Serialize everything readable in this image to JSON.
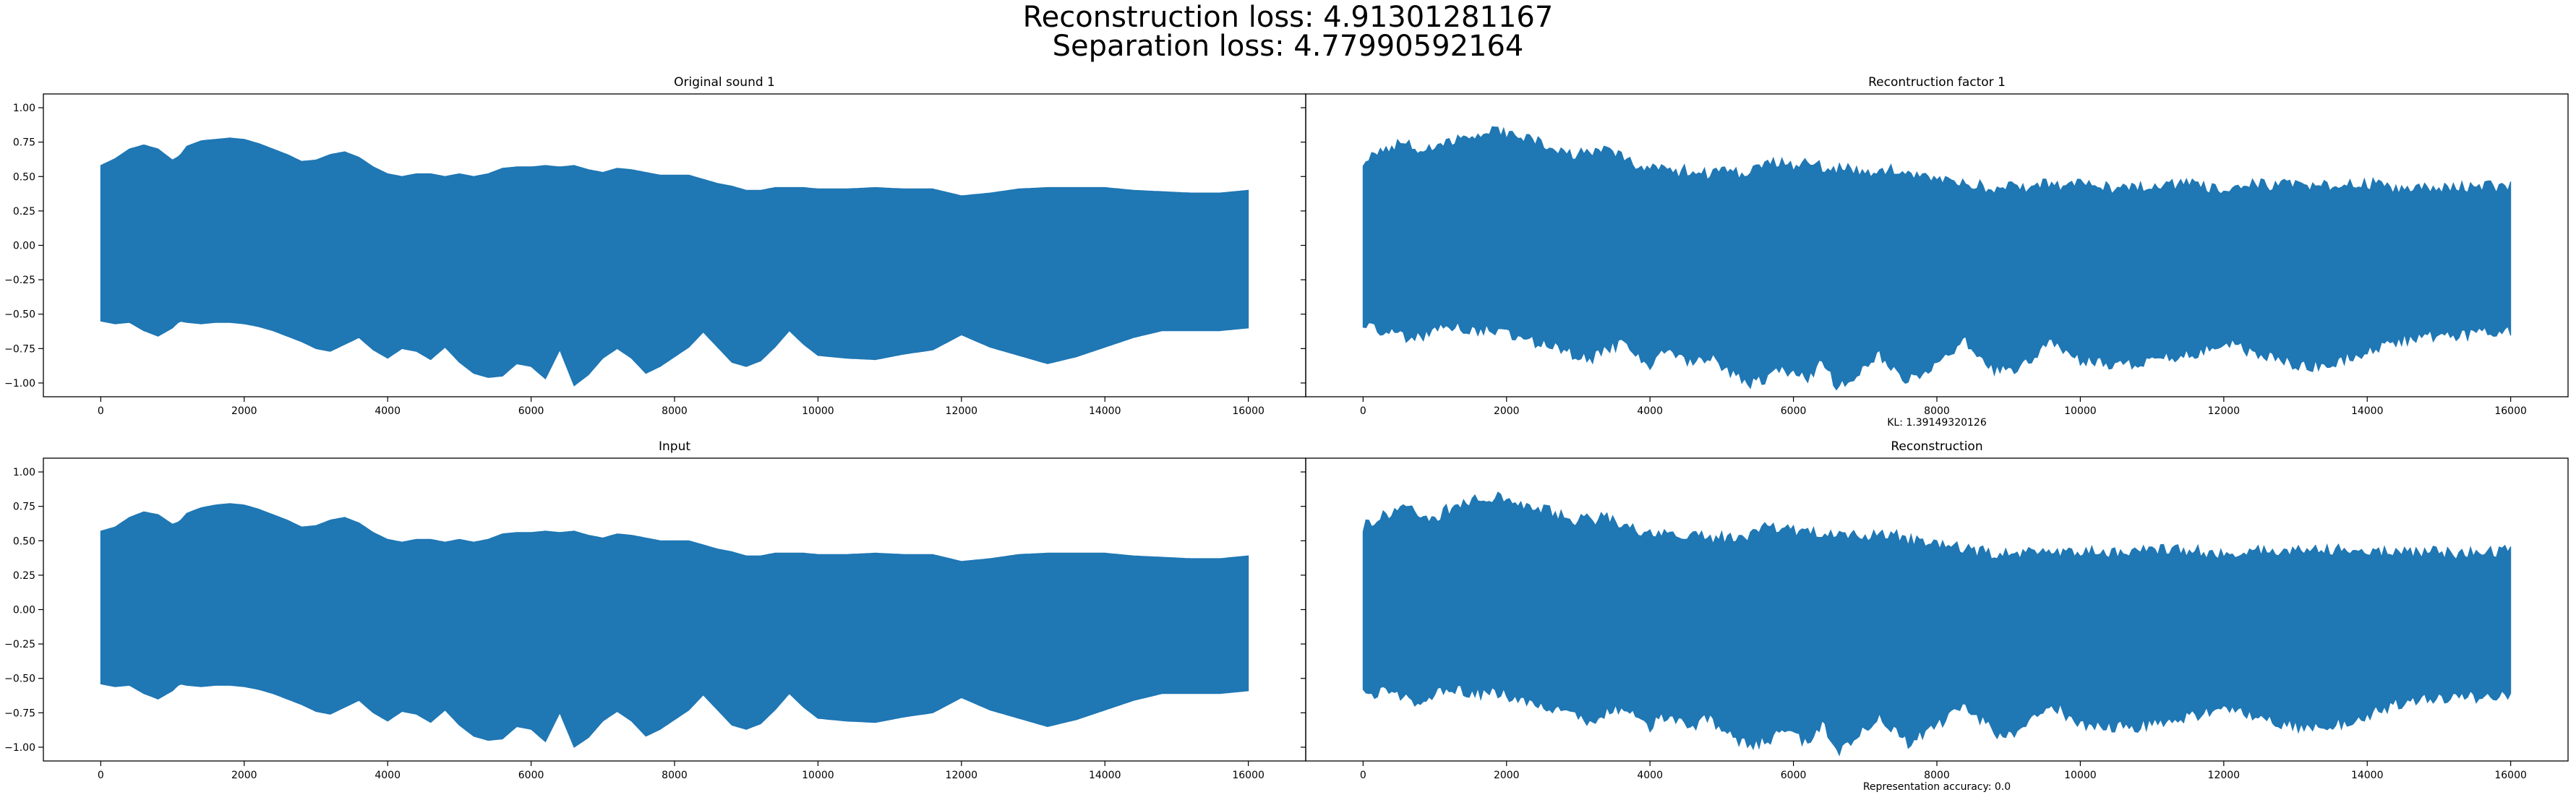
{
  "figure": {
    "suptitle_line1": "Reconstruction loss: 4.91301281167",
    "suptitle_line2": "Separation loss: 4.77990592164",
    "waveform_color": "#1f77b4"
  },
  "chart_data": [
    {
      "type": "line",
      "title": "Original sound 1",
      "note": "",
      "xlim": [
        -800,
        16800
      ],
      "ylim": [
        -1.1,
        1.1
      ],
      "xticks": [
        0,
        2000,
        4000,
        6000,
        8000,
        10000,
        12000,
        14000,
        16000
      ],
      "yticks": [
        -1.0,
        -0.75,
        -0.5,
        -0.25,
        0.0,
        0.25,
        0.5,
        0.75,
        1.0
      ],
      "ytick_labels": [
        "−1.00",
        "−0.75",
        "−0.50",
        "−0.25",
        "0.00",
        "0.25",
        "0.50",
        "0.75",
        "1.00"
      ],
      "envelope_x": [
        0,
        200,
        400,
        600,
        800,
        1000,
        1100,
        1200,
        1400,
        1600,
        1800,
        2000,
        2200,
        2400,
        2600,
        2800,
        3000,
        3200,
        3400,
        3600,
        3800,
        4000,
        4200,
        4400,
        4600,
        4800,
        5000,
        5200,
        5400,
        5600,
        5800,
        6000,
        6200,
        6400,
        6600,
        6800,
        7000,
        7200,
        7400,
        7600,
        7800,
        8000,
        8200,
        8400,
        8600,
        8800,
        9000,
        9200,
        9400,
        9600,
        9800,
        10000,
        10400,
        10800,
        11200,
        11600,
        12000,
        12400,
        12800,
        13200,
        13600,
        14000,
        14400,
        14800,
        15200,
        15600,
        16000
      ],
      "envelope_upper": [
        0.58,
        0.63,
        0.7,
        0.73,
        0.7,
        0.62,
        0.65,
        0.72,
        0.76,
        0.77,
        0.78,
        0.77,
        0.74,
        0.7,
        0.66,
        0.61,
        0.62,
        0.66,
        0.68,
        0.64,
        0.57,
        0.52,
        0.5,
        0.52,
        0.52,
        0.5,
        0.52,
        0.5,
        0.52,
        0.56,
        0.57,
        0.57,
        0.58,
        0.57,
        0.58,
        0.55,
        0.53,
        0.56,
        0.55,
        0.53,
        0.51,
        0.51,
        0.51,
        0.48,
        0.45,
        0.43,
        0.4,
        0.4,
        0.42,
        0.42,
        0.42,
        0.41,
        0.41,
        0.42,
        0.41,
        0.41,
        0.36,
        0.38,
        0.41,
        0.42,
        0.42,
        0.42,
        0.4,
        0.39,
        0.38,
        0.38,
        0.4
      ],
      "envelope_lower": [
        -0.55,
        -0.57,
        -0.56,
        -0.62,
        -0.66,
        -0.6,
        -0.55,
        -0.56,
        -0.57,
        -0.56,
        -0.56,
        -0.57,
        -0.59,
        -0.62,
        -0.66,
        -0.7,
        -0.75,
        -0.77,
        -0.72,
        -0.67,
        -0.76,
        -0.82,
        -0.75,
        -0.77,
        -0.83,
        -0.74,
        -0.85,
        -0.93,
        -0.96,
        -0.95,
        -0.86,
        -0.88,
        -0.97,
        -0.76,
        -1.02,
        -0.94,
        -0.82,
        -0.75,
        -0.82,
        -0.93,
        -0.88,
        -0.81,
        -0.74,
        -0.63,
        -0.74,
        -0.85,
        -0.88,
        -0.84,
        -0.74,
        -0.62,
        -0.72,
        -0.8,
        -0.82,
        -0.83,
        -0.79,
        -0.76,
        -0.65,
        -0.74,
        -0.8,
        -0.86,
        -0.81,
        -0.74,
        -0.67,
        -0.62,
        -0.62,
        -0.62,
        -0.6
      ]
    },
    {
      "type": "line",
      "title": "Recontruction factor 1",
      "note": "KL: 1.39149320126",
      "xlim": [
        -800,
        16800
      ],
      "ylim": [
        -1.1,
        1.1
      ],
      "xticks": [
        0,
        2000,
        4000,
        6000,
        8000,
        10000,
        12000,
        14000,
        16000
      ],
      "yticks": [
        -1.0,
        -0.75,
        -0.5,
        -0.25,
        0.0,
        0.25,
        0.5,
        0.75,
        1.0
      ],
      "ytick_labels": [
        "",
        "",
        "",
        "",
        "",
        "",
        "",
        "",
        ""
      ],
      "envelope_x": [
        0,
        200,
        400,
        600,
        800,
        1000,
        1200,
        1400,
        1600,
        1800,
        2000,
        2200,
        2400,
        2600,
        2800,
        3000,
        3200,
        3400,
        3600,
        3800,
        4000,
        4200,
        4400,
        4600,
        4800,
        5000,
        5200,
        5400,
        5600,
        5800,
        6000,
        6200,
        6400,
        6600,
        6800,
        7000,
        7200,
        7400,
        7600,
        7800,
        8000,
        8200,
        8400,
        8600,
        8800,
        9000,
        9200,
        9400,
        9600,
        9800,
        10000,
        10400,
        10800,
        11200,
        11600,
        12000,
        12400,
        12800,
        13200,
        13600,
        14000,
        14400,
        14800,
        15200,
        15600,
        16000
      ],
      "envelope_upper": [
        0.62,
        0.68,
        0.72,
        0.74,
        0.7,
        0.68,
        0.74,
        0.8,
        0.81,
        0.83,
        0.8,
        0.78,
        0.75,
        0.72,
        0.68,
        0.66,
        0.66,
        0.68,
        0.64,
        0.58,
        0.56,
        0.55,
        0.53,
        0.56,
        0.52,
        0.54,
        0.52,
        0.55,
        0.6,
        0.6,
        0.58,
        0.6,
        0.57,
        0.56,
        0.56,
        0.53,
        0.56,
        0.55,
        0.52,
        0.5,
        0.5,
        0.48,
        0.45,
        0.43,
        0.42,
        0.42,
        0.42,
        0.45,
        0.43,
        0.44,
        0.44,
        0.42,
        0.43,
        0.44,
        0.44,
        0.4,
        0.44,
        0.44,
        0.44,
        0.44,
        0.45,
        0.42,
        0.43,
        0.42,
        0.42,
        0.44
      ],
      "envelope_lower": [
        -0.58,
        -0.62,
        -0.6,
        -0.66,
        -0.68,
        -0.62,
        -0.6,
        -0.6,
        -0.62,
        -0.62,
        -0.63,
        -0.66,
        -0.7,
        -0.72,
        -0.76,
        -0.8,
        -0.82,
        -0.76,
        -0.72,
        -0.8,
        -0.86,
        -0.78,
        -0.82,
        -0.86,
        -0.8,
        -0.88,
        -0.96,
        -1.0,
        -0.97,
        -0.9,
        -0.92,
        -0.98,
        -0.82,
        -1.05,
        -0.98,
        -0.88,
        -0.8,
        -0.88,
        -0.98,
        -0.92,
        -0.86,
        -0.78,
        -0.7,
        -0.8,
        -0.9,
        -0.92,
        -0.88,
        -0.78,
        -0.68,
        -0.78,
        -0.84,
        -0.86,
        -0.86,
        -0.82,
        -0.78,
        -0.7,
        -0.78,
        -0.84,
        -0.88,
        -0.84,
        -0.78,
        -0.7,
        -0.66,
        -0.66,
        -0.64,
        -0.62
      ],
      "noisy": true
    },
    {
      "type": "line",
      "title": "Input",
      "note": "",
      "xlim": [
        -800,
        16800
      ],
      "ylim": [
        -1.1,
        1.1
      ],
      "xticks": [
        0,
        2000,
        4000,
        6000,
        8000,
        10000,
        12000,
        14000,
        16000
      ],
      "yticks": [
        -1.0,
        -0.75,
        -0.5,
        -0.25,
        0.0,
        0.25,
        0.5,
        0.75,
        1.0
      ],
      "ytick_labels": [
        "−1.00",
        "−0.75",
        "−0.50",
        "−0.25",
        "0.00",
        "0.25",
        "0.50",
        "0.75",
        "1.00"
      ],
      "envelope_x": [
        0,
        200,
        400,
        600,
        800,
        1000,
        1100,
        1200,
        1400,
        1600,
        1800,
        2000,
        2200,
        2400,
        2600,
        2800,
        3000,
        3200,
        3400,
        3600,
        3800,
        4000,
        4200,
        4400,
        4600,
        4800,
        5000,
        5200,
        5400,
        5600,
        5800,
        6000,
        6200,
        6400,
        6600,
        6800,
        7000,
        7200,
        7400,
        7600,
        7800,
        8000,
        8200,
        8400,
        8600,
        8800,
        9000,
        9200,
        9400,
        9600,
        9800,
        10000,
        10400,
        10800,
        11200,
        11600,
        12000,
        12400,
        12800,
        13200,
        13600,
        14000,
        14400,
        14800,
        15200,
        15600,
        16000
      ],
      "envelope_upper": [
        0.57,
        0.6,
        0.67,
        0.71,
        0.69,
        0.62,
        0.64,
        0.7,
        0.74,
        0.76,
        0.77,
        0.76,
        0.73,
        0.69,
        0.65,
        0.6,
        0.61,
        0.65,
        0.67,
        0.63,
        0.56,
        0.51,
        0.49,
        0.51,
        0.51,
        0.49,
        0.51,
        0.49,
        0.51,
        0.55,
        0.56,
        0.56,
        0.57,
        0.56,
        0.57,
        0.54,
        0.52,
        0.55,
        0.54,
        0.52,
        0.5,
        0.5,
        0.5,
        0.47,
        0.44,
        0.42,
        0.39,
        0.39,
        0.41,
        0.41,
        0.41,
        0.4,
        0.4,
        0.41,
        0.4,
        0.4,
        0.35,
        0.37,
        0.4,
        0.41,
        0.41,
        0.41,
        0.39,
        0.38,
        0.37,
        0.37,
        0.39
      ],
      "envelope_lower": [
        -0.54,
        -0.56,
        -0.55,
        -0.61,
        -0.65,
        -0.59,
        -0.54,
        -0.55,
        -0.56,
        -0.55,
        -0.55,
        -0.56,
        -0.58,
        -0.61,
        -0.65,
        -0.69,
        -0.74,
        -0.76,
        -0.71,
        -0.66,
        -0.75,
        -0.81,
        -0.74,
        -0.76,
        -0.82,
        -0.73,
        -0.84,
        -0.92,
        -0.95,
        -0.94,
        -0.85,
        -0.87,
        -0.96,
        -0.75,
        -1.0,
        -0.93,
        -0.81,
        -0.74,
        -0.81,
        -0.92,
        -0.87,
        -0.8,
        -0.73,
        -0.62,
        -0.73,
        -0.84,
        -0.87,
        -0.83,
        -0.73,
        -0.61,
        -0.71,
        -0.79,
        -0.81,
        -0.82,
        -0.78,
        -0.75,
        -0.64,
        -0.73,
        -0.79,
        -0.85,
        -0.8,
        -0.73,
        -0.66,
        -0.61,
        -0.61,
        -0.61,
        -0.59
      ]
    },
    {
      "type": "line",
      "title": "Reconstruction",
      "note": "Representation accuracy: 0.0",
      "xlim": [
        -800,
        16800
      ],
      "ylim": [
        -1.1,
        1.1
      ],
      "xticks": [
        0,
        2000,
        4000,
        6000,
        8000,
        10000,
        12000,
        14000,
        16000
      ],
      "yticks": [
        -1.0,
        -0.75,
        -0.5,
        -0.25,
        0.0,
        0.25,
        0.5,
        0.75,
        1.0
      ],
      "ytick_labels": [
        "",
        "",
        "",
        "",
        "",
        "",
        "",
        "",
        ""
      ],
      "envelope_x": [
        0,
        200,
        400,
        600,
        800,
        1000,
        1200,
        1400,
        1600,
        1800,
        2000,
        2200,
        2400,
        2600,
        2800,
        3000,
        3200,
        3400,
        3600,
        3800,
        4000,
        4200,
        4400,
        4600,
        4800,
        5000,
        5200,
        5400,
        5600,
        5800,
        6000,
        6200,
        6400,
        6600,
        6800,
        7000,
        7200,
        7400,
        7600,
        7800,
        8000,
        8200,
        8400,
        8600,
        8800,
        9000,
        9200,
        9400,
        9600,
        9800,
        10000,
        10400,
        10800,
        11200,
        11600,
        12000,
        12400,
        12800,
        13200,
        13600,
        14000,
        14400,
        14800,
        15200,
        15600,
        16000
      ],
      "envelope_upper": [
        0.61,
        0.67,
        0.71,
        0.73,
        0.69,
        0.67,
        0.73,
        0.79,
        0.8,
        0.82,
        0.79,
        0.77,
        0.74,
        0.71,
        0.67,
        0.65,
        0.65,
        0.67,
        0.63,
        0.57,
        0.55,
        0.54,
        0.52,
        0.55,
        0.51,
        0.53,
        0.51,
        0.54,
        0.59,
        0.59,
        0.57,
        0.59,
        0.56,
        0.55,
        0.55,
        0.52,
        0.55,
        0.54,
        0.51,
        0.49,
        0.49,
        0.47,
        0.44,
        0.42,
        0.41,
        0.41,
        0.41,
        0.44,
        0.42,
        0.43,
        0.43,
        0.41,
        0.42,
        0.43,
        0.43,
        0.39,
        0.43,
        0.43,
        0.43,
        0.43,
        0.44,
        0.41,
        0.42,
        0.41,
        0.41,
        0.43
      ],
      "envelope_lower": [
        -0.57,
        -0.61,
        -0.59,
        -0.65,
        -0.67,
        -0.61,
        -0.59,
        -0.59,
        -0.61,
        -0.61,
        -0.62,
        -0.65,
        -0.69,
        -0.71,
        -0.75,
        -0.79,
        -0.81,
        -0.75,
        -0.71,
        -0.79,
        -0.85,
        -0.77,
        -0.81,
        -0.85,
        -0.79,
        -0.87,
        -0.95,
        -0.99,
        -0.96,
        -0.89,
        -0.91,
        -0.97,
        -0.81,
        -1.04,
        -0.97,
        -0.87,
        -0.79,
        -0.87,
        -0.97,
        -0.91,
        -0.85,
        -0.77,
        -0.69,
        -0.79,
        -0.89,
        -0.91,
        -0.87,
        -0.77,
        -0.67,
        -0.77,
        -0.83,
        -0.85,
        -0.85,
        -0.81,
        -0.77,
        -0.69,
        -0.77,
        -0.83,
        -0.87,
        -0.83,
        -0.77,
        -0.69,
        -0.65,
        -0.65,
        -0.63,
        -0.61
      ],
      "noisy": true
    }
  ]
}
